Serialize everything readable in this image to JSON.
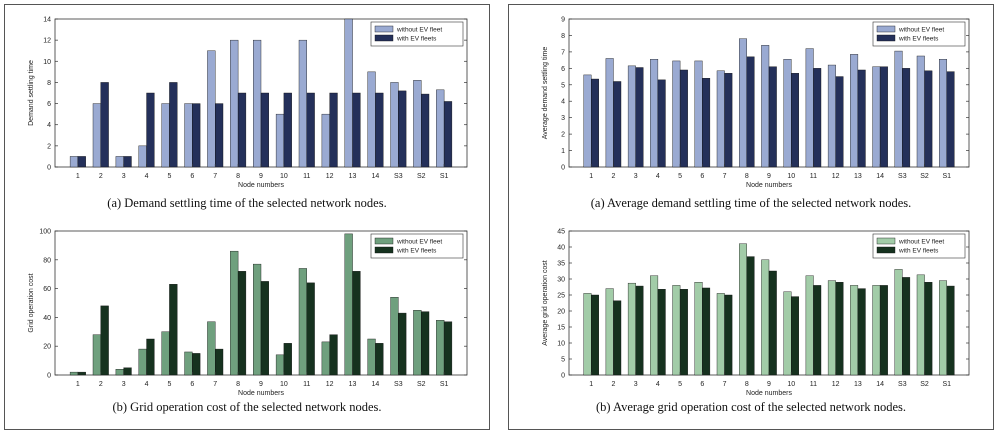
{
  "chart_data": [
    {
      "type": "bar",
      "panel": "left",
      "caption": "(a)  Demand settling time of the selected network nodes.",
      "categories": [
        "1",
        "2",
        "3",
        "4",
        "5",
        "6",
        "7",
        "8",
        "9",
        "10",
        "11",
        "12",
        "13",
        "14",
        "S3",
        "S2",
        "S1"
      ],
      "series": [
        {
          "name": "without EV fleet",
          "values": [
            1,
            6,
            1,
            2,
            6,
            6,
            11,
            12,
            12,
            5,
            12,
            5,
            14,
            9,
            8,
            8.2,
            7.3
          ]
        },
        {
          "name": "with EV fleets",
          "values": [
            1,
            8,
            1,
            7,
            8,
            6,
            6,
            7,
            7,
            7,
            7,
            7,
            7,
            7,
            7.2,
            6.9,
            6.2
          ]
        }
      ],
      "xlabel": "Node numbers",
      "ylabel": "Demand settling time",
      "ylim": [
        0,
        14
      ],
      "yticks": [
        0,
        2,
        4,
        6,
        8,
        10,
        12,
        14
      ],
      "legend": "top-right",
      "colors": [
        "#9aaad2",
        "#24305a"
      ]
    },
    {
      "type": "bar",
      "panel": "left",
      "caption": "(b)  Grid operation cost of the selected network nodes.",
      "categories": [
        "1",
        "2",
        "3",
        "4",
        "5",
        "6",
        "7",
        "8",
        "9",
        "10",
        "11",
        "12",
        "13",
        "14",
        "S3",
        "S2",
        "S1"
      ],
      "series": [
        {
          "name": "without EV fleet",
          "values": [
            2,
            28,
            4,
            18,
            30,
            16,
            37,
            86,
            77,
            14,
            74,
            23,
            98,
            25,
            54,
            45,
            38
          ]
        },
        {
          "name": "with EV fleets",
          "values": [
            2,
            48,
            5,
            25,
            63,
            15,
            18,
            72,
            65,
            22,
            64,
            28,
            72,
            22,
            43,
            44,
            37
          ]
        }
      ],
      "xlabel": "Node numbers",
      "ylabel": "Grid operation cost",
      "ylim": [
        0,
        100
      ],
      "yticks": [
        0,
        20,
        40,
        60,
        80,
        100
      ],
      "legend": "top-right",
      "colors": [
        "#6fa07e",
        "#16321f"
      ]
    },
    {
      "type": "bar",
      "panel": "right",
      "caption": "(a)  Average demand settling time of the selected network nodes.",
      "categories": [
        "1",
        "2",
        "3",
        "4",
        "5",
        "6",
        "7",
        "8",
        "9",
        "10",
        "11",
        "12",
        "13",
        "14",
        "S3",
        "S2",
        "S1"
      ],
      "series": [
        {
          "name": "without EV fleet",
          "values": [
            5.6,
            6.6,
            6.15,
            6.55,
            6.45,
            6.45,
            5.85,
            7.8,
            7.4,
            6.55,
            7.2,
            6.2,
            6.85,
            6.1,
            7.05,
            6.75,
            6.55
          ]
        },
        {
          "name": "with EV fleets",
          "values": [
            5.35,
            5.2,
            6.05,
            5.3,
            5.9,
            5.4,
            5.7,
            6.7,
            6.1,
            5.7,
            6.0,
            5.5,
            5.9,
            6.1,
            6.0,
            5.85,
            5.8
          ]
        }
      ],
      "xlabel": "Node numbers",
      "ylabel": "Average demand settling time",
      "ylim": [
        0,
        9
      ],
      "yticks": [
        0,
        1,
        2,
        3,
        4,
        5,
        6,
        7,
        8,
        9
      ],
      "legend": "top-right",
      "colors": [
        "#9aaad2",
        "#24305a"
      ]
    },
    {
      "type": "bar",
      "panel": "right",
      "caption": "(b)  Average grid operation cost of the selected network nodes.",
      "categories": [
        "1",
        "2",
        "3",
        "4",
        "5",
        "6",
        "7",
        "8",
        "9",
        "10",
        "11",
        "12",
        "13",
        "14",
        "S3",
        "S2",
        "S1"
      ],
      "series": [
        {
          "name": "without EV fleet",
          "values": [
            25.5,
            27,
            28.7,
            31,
            28,
            29,
            25.5,
            41,
            36,
            26,
            31,
            29.5,
            28,
            28,
            33,
            31.3,
            29.5
          ]
        },
        {
          "name": "with EV fleets",
          "values": [
            25,
            23.2,
            27.8,
            26.8,
            26.8,
            27.2,
            25,
            37,
            32.5,
            24.5,
            28,
            29,
            27,
            28,
            30.5,
            29,
            27.8
          ]
        }
      ],
      "xlabel": "Node numbers",
      "ylabel": "Average grid operation cost",
      "ylim": [
        0,
        45
      ],
      "yticks": [
        0,
        5,
        10,
        15,
        20,
        25,
        30,
        35,
        40,
        45
      ],
      "legend": "top-right",
      "colors": [
        "#a2cca8",
        "#16321f"
      ]
    }
  ]
}
